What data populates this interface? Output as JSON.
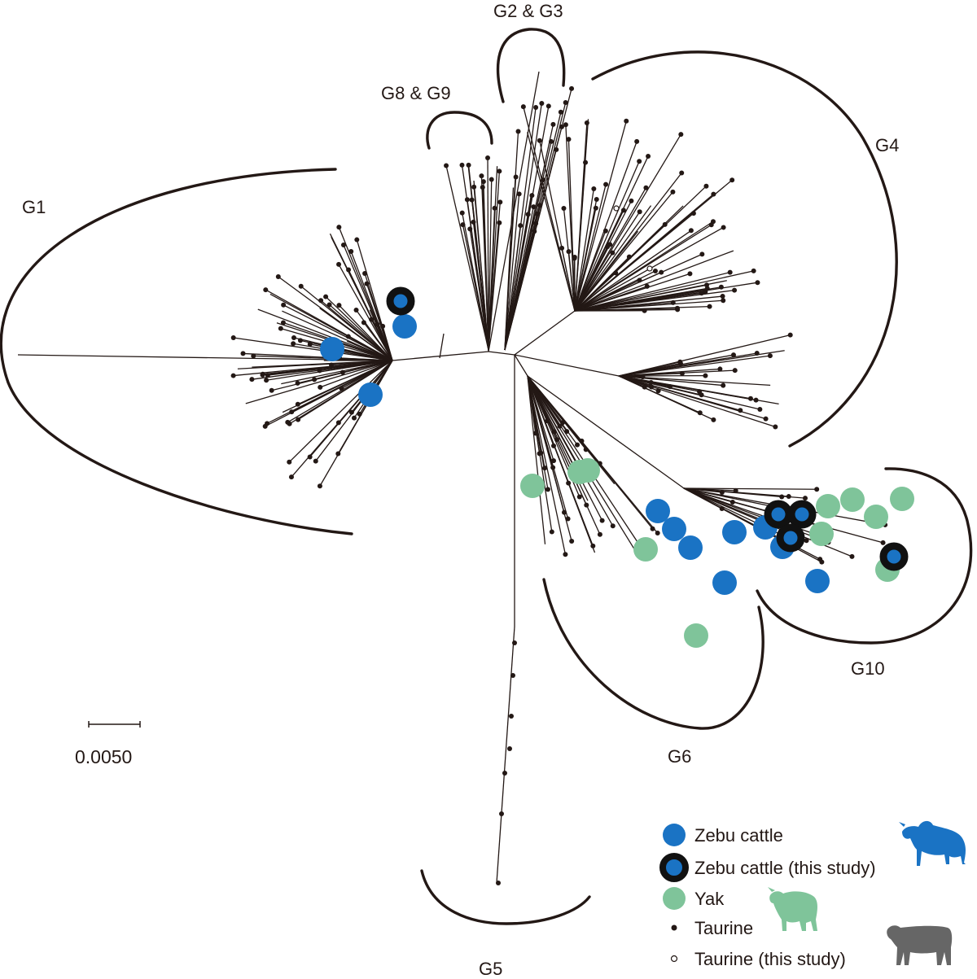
{
  "figure": {
    "type": "unrooted phylogenetic tree",
    "clades": [
      "G1",
      "G2 & G3",
      "G8 & G9",
      "G4",
      "G5",
      "G6",
      "G10"
    ],
    "scale_bar": {
      "label": "0.0050"
    }
  },
  "legend": {
    "items": [
      {
        "label": "Zebu cattle",
        "marker": "blue-circle"
      },
      {
        "label": "Zebu cattle (this study)",
        "marker": "blue-circle-black-ring"
      },
      {
        "label": "Yak",
        "marker": "green-circle"
      },
      {
        "label": "Taurine",
        "marker": "small-black-dot"
      },
      {
        "label": "Taurine (this study)",
        "marker": "small-open-circle"
      }
    ],
    "icons": [
      "zebu-silhouette-icon",
      "yak-silhouette-icon",
      "taurine-silhouette-icon"
    ]
  },
  "colors": {
    "zebu": "#1a73c4",
    "yak": "#7fc49a",
    "taurine": "#231815",
    "ring": "#111111",
    "zebu_icon": "#1a73c4",
    "yak_icon": "#7fc49a",
    "taurine_icon": "#666666"
  }
}
